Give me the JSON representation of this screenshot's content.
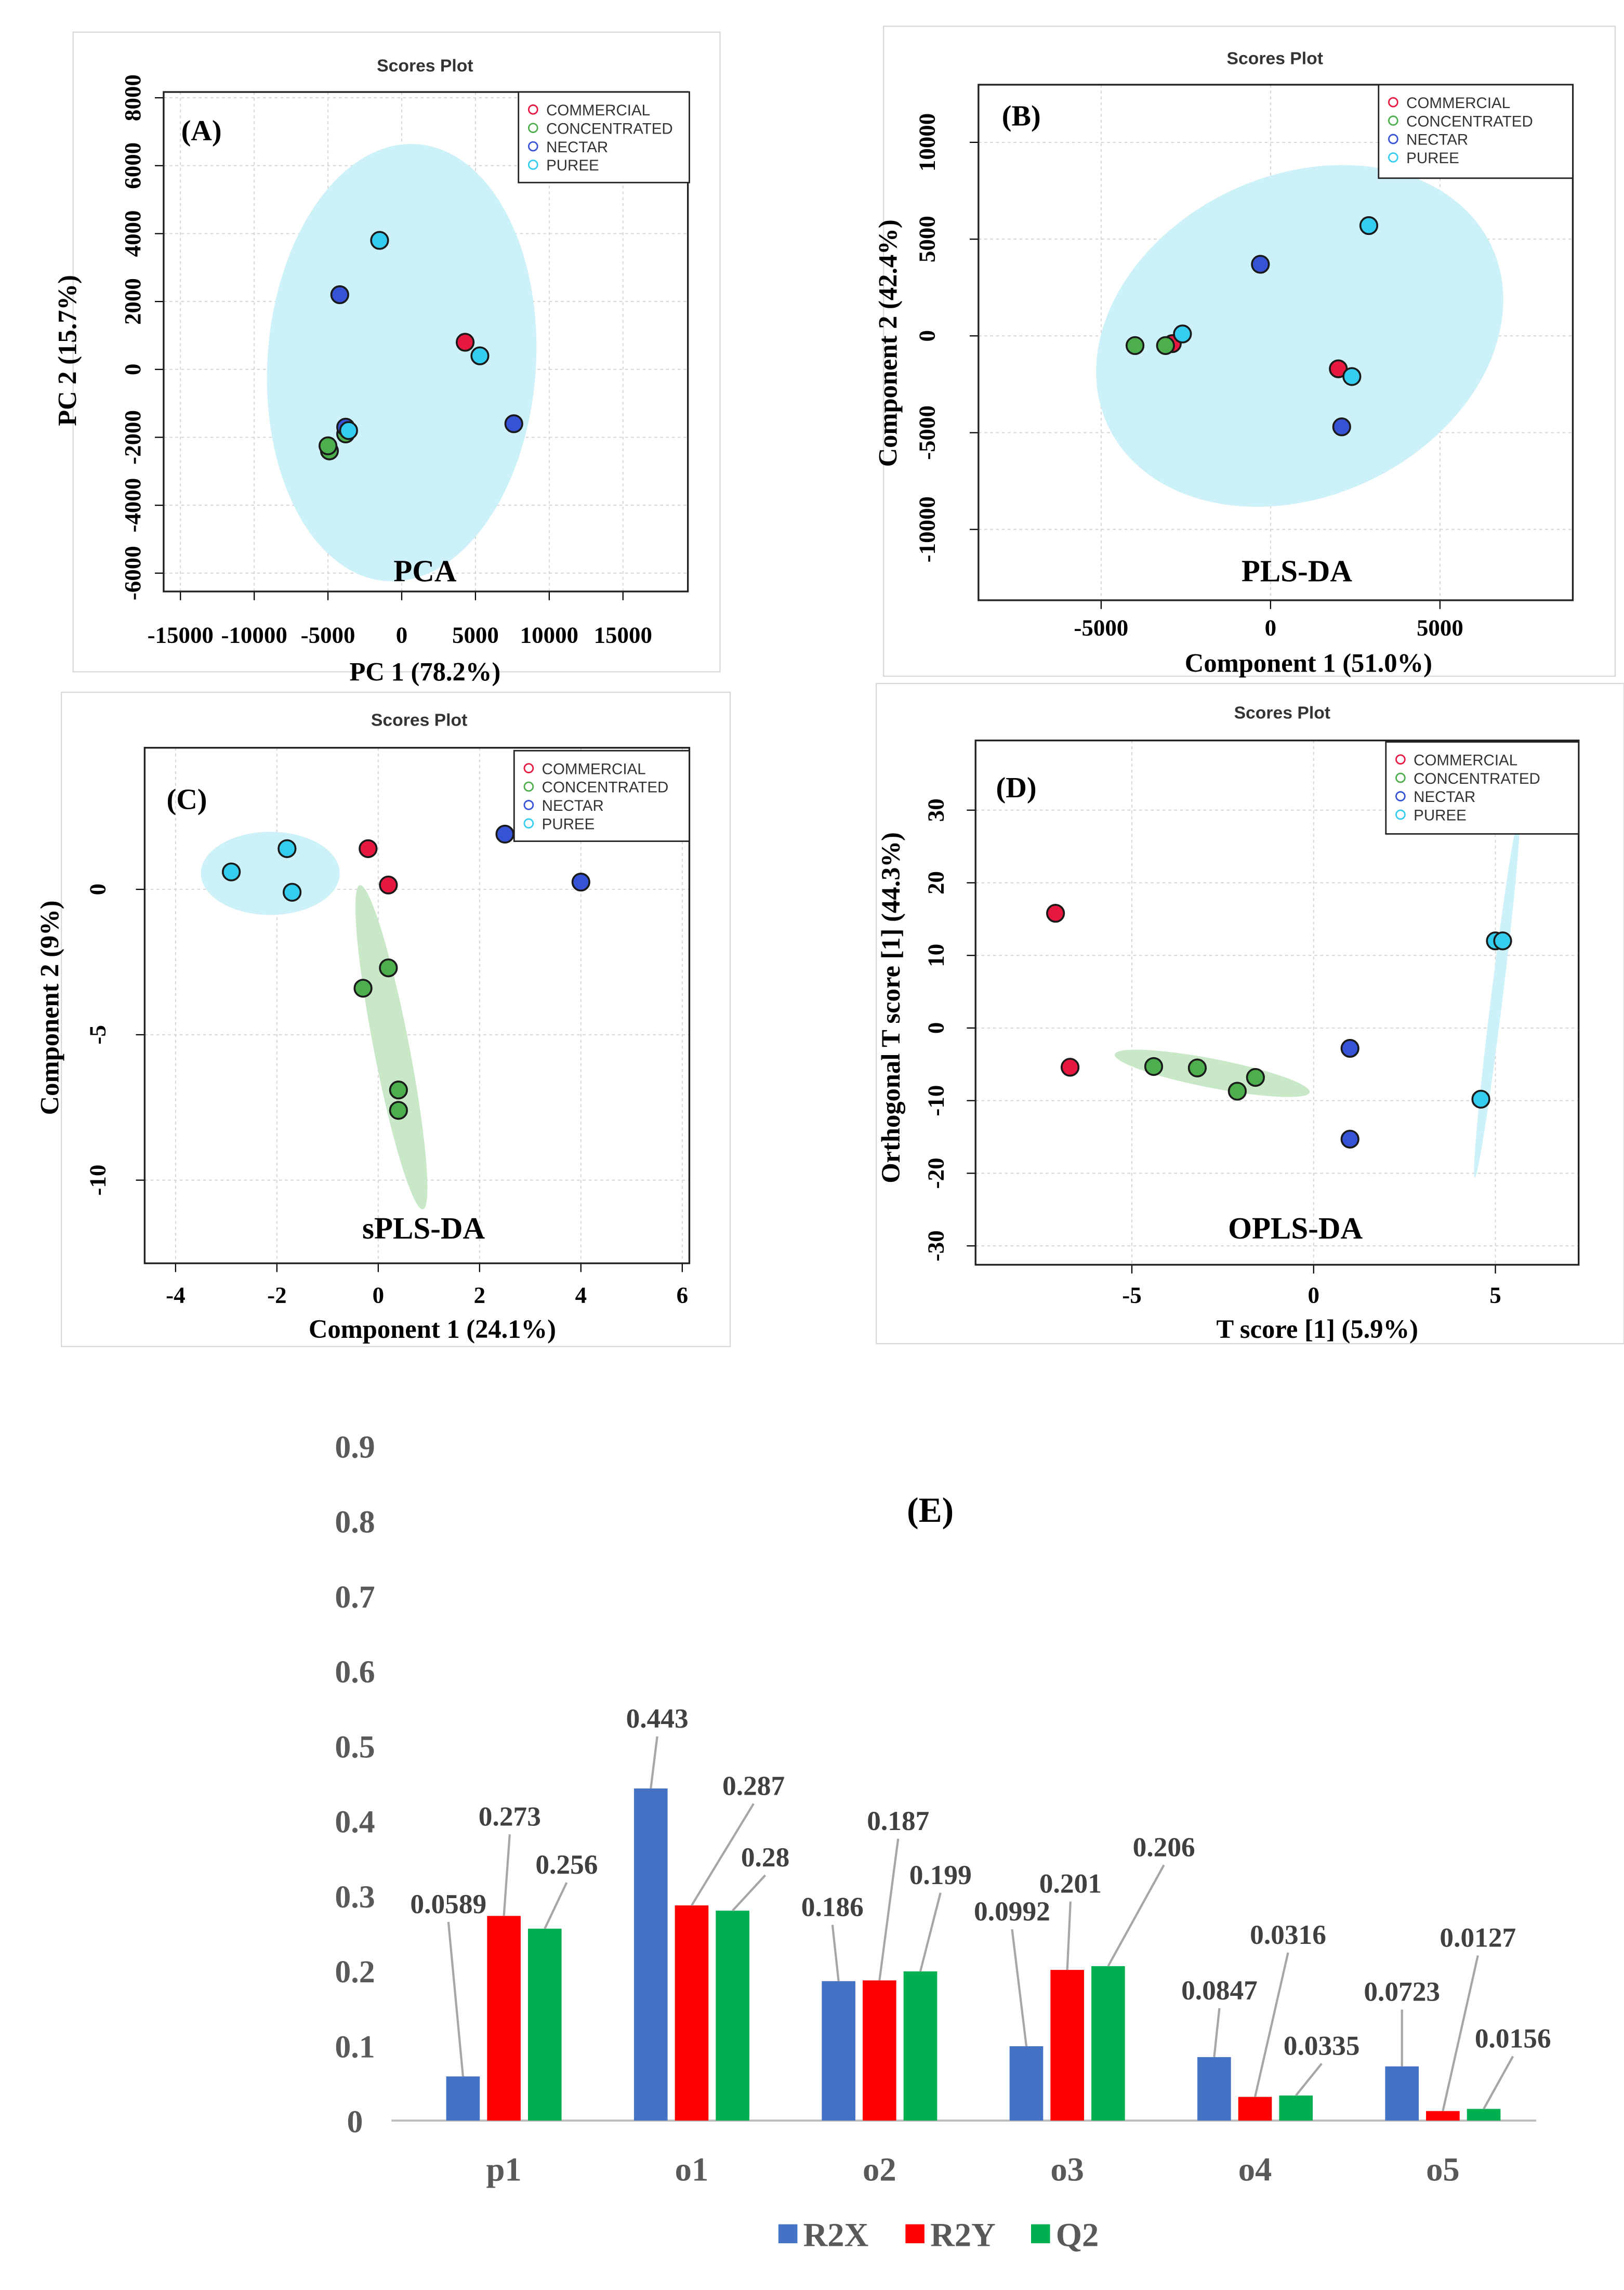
{
  "chart_data": [
    {
      "type": "scatter",
      "title": "Scores Plot",
      "panel_label": "(A)",
      "method_label": "PCA",
      "xlabel": "PC 1 (78.2%)",
      "ylabel": "PC 2 (15.7%)",
      "xlim": [
        -16140,
        19400
      ],
      "ylim": [
        -6540,
        8170
      ],
      "xticks": [
        -15000,
        -10000,
        -5000,
        0,
        5000,
        10000,
        15000
      ],
      "yticks": [
        -6000,
        -4000,
        -2000,
        0,
        2000,
        4000,
        6000,
        8000
      ],
      "grid": true,
      "legend_position": "top-right",
      "legend": [
        "COMMERCIAL",
        "CONCENTRATED",
        "NECTAR",
        "PUREE"
      ],
      "points": [
        {
          "group": "PUREE",
          "x": -1500,
          "y": 3800
        },
        {
          "group": "NECTAR",
          "x": -4200,
          "y": 2200
        },
        {
          "group": "COMMERCIAL",
          "x": 4300,
          "y": 800
        },
        {
          "group": "PUREE",
          "x": 5300,
          "y": 400
        },
        {
          "group": "NECTAR",
          "x": 7600,
          "y": -1600
        },
        {
          "group": "CONCENTRATED",
          "x": -3800,
          "y": -1900
        },
        {
          "group": "NECTAR",
          "x": -3800,
          "y": -1700
        },
        {
          "group": "PUREE",
          "x": -3600,
          "y": -1800
        },
        {
          "group": "CONCENTRATED",
          "x": -4900,
          "y": -2400
        },
        {
          "group": "CONCENTRATED",
          "x": -5000,
          "y": -2250
        }
      ],
      "ellipses": [
        {
          "group": "PUREE",
          "cx": 0,
          "cy": 200,
          "rx": 9100,
          "ry": 6450,
          "angle": 4
        }
      ]
    },
    {
      "type": "scatter",
      "title": "Scores Plot",
      "panel_label": "(B)",
      "method_label": "PLS-DA",
      "xlabel": "Component 1 (51.0%)",
      "ylabel": "Component 2 (42.4%)",
      "xlim": [
        -8620,
        8920
      ],
      "ylim": [
        -13660,
        12980
      ],
      "xticks": [
        -5000,
        0,
        5000
      ],
      "yticks": [
        -10000,
        -5000,
        0,
        5000,
        10000
      ],
      "grid": true,
      "legend_position": "top-right",
      "legend": [
        "COMMERCIAL",
        "CONCENTRATED",
        "NECTAR",
        "PUREE"
      ],
      "points": [
        {
          "group": "PUREE",
          "x": 2900,
          "y": 5700
        },
        {
          "group": "NECTAR",
          "x": -300,
          "y": 3700
        },
        {
          "group": "COMMERCIAL",
          "x": -2900,
          "y": -400
        },
        {
          "group": "PUREE",
          "x": -2600,
          "y": 100
        },
        {
          "group": "CONCENTRATED",
          "x": -3100,
          "y": -500
        },
        {
          "group": "CONCENTRATED",
          "x": -4000,
          "y": -500
        },
        {
          "group": "COMMERCIAL",
          "x": 2000,
          "y": -1700
        },
        {
          "group": "PUREE",
          "x": 2400,
          "y": -2100
        },
        {
          "group": "NECTAR",
          "x": 2100,
          "y": -4700
        }
      ],
      "ellipses": [
        {
          "group": "PUREE",
          "cx": 860,
          "cy": 0,
          "rx": 6250,
          "ry": 8300,
          "angle": -25
        }
      ]
    },
    {
      "type": "scatter",
      "title": "Scores Plot",
      "panel_label": "(C)",
      "method_label": "sPLS-DA",
      "xlabel": "Component 1 (24.1%)",
      "ylabel": "Component 2 (9%)",
      "xlim": [
        -4.61,
        6.14
      ],
      "ylim": [
        -12.86,
        4.87
      ],
      "xticks": [
        -4,
        -2,
        0,
        2,
        4,
        6
      ],
      "yticks": [
        -10,
        -5,
        0
      ],
      "grid": true,
      "legend_position": "top-right",
      "legend": [
        "COMMERCIAL",
        "CONCENTRATED",
        "NECTAR",
        "PUREE"
      ],
      "points": [
        {
          "group": "PUREE",
          "x": -2.9,
          "y": 0.6
        },
        {
          "group": "PUREE",
          "x": -1.8,
          "y": 1.4
        },
        {
          "group": "PUREE",
          "x": -1.7,
          "y": -0.1
        },
        {
          "group": "COMMERCIAL",
          "x": -0.2,
          "y": 1.4
        },
        {
          "group": "COMMERCIAL",
          "x": 0.2,
          "y": 0.15
        },
        {
          "group": "NECTAR",
          "x": 2.5,
          "y": 1.9
        },
        {
          "group": "NECTAR",
          "x": 4.0,
          "y": 0.25
        },
        {
          "group": "CONCENTRATED",
          "x": 0.2,
          "y": -2.7
        },
        {
          "group": "CONCENTRATED",
          "x": -0.3,
          "y": -3.4
        },
        {
          "group": "CONCENTRATED",
          "x": 0.4,
          "y": -6.9
        },
        {
          "group": "CONCENTRATED",
          "x": 0.4,
          "y": -7.6
        }
      ],
      "ellipses": [
        {
          "group": "PUREE",
          "cx": -2.13,
          "cy": 0.55,
          "rx": 1.37,
          "ry": 1.43,
          "angle": 0
        },
        {
          "group": "CONCENTRATED",
          "cx": 0.26,
          "cy": -5.43,
          "rx": 0.35,
          "ry": 5.68,
          "angle": -11
        }
      ]
    },
    {
      "type": "scatter",
      "title": "Scores Plot",
      "panel_label": "(D)",
      "method_label": "OPLS-DA",
      "xlabel": "T score [1] (5.9%)",
      "ylabel": "Orthogonal T score [1] (44.3%)",
      "xlim": [
        -9.3,
        7.29
      ],
      "ylim": [
        -32.6,
        39.6
      ],
      "xticks": [
        -5,
        0,
        5
      ],
      "yticks": [
        -30,
        -20,
        -10,
        0,
        10,
        20,
        30
      ],
      "grid": true,
      "legend_position": "top-right",
      "legend": [
        "COMMERCIAL",
        "CONCENTRATED",
        "NECTAR",
        "PUREE"
      ],
      "points": [
        {
          "group": "COMMERCIAL",
          "x": -7.1,
          "y": 15.8
        },
        {
          "group": "COMMERCIAL",
          "x": -6.7,
          "y": -5.4
        },
        {
          "group": "CONCENTRATED",
          "x": -4.4,
          "y": -5.3
        },
        {
          "group": "CONCENTRATED",
          "x": -3.2,
          "y": -5.5
        },
        {
          "group": "CONCENTRATED",
          "x": -2.1,
          "y": -8.7
        },
        {
          "group": "CONCENTRATED",
          "x": -1.6,
          "y": -6.8
        },
        {
          "group": "NECTAR",
          "x": 1.0,
          "y": -2.8
        },
        {
          "group": "NECTAR",
          "x": 1.0,
          "y": -15.3
        },
        {
          "group": "PUREE",
          "x": 5.0,
          "y": 12.0
        },
        {
          "group": "PUREE",
          "x": 5.2,
          "y": 12.0
        },
        {
          "group": "PUREE",
          "x": 4.6,
          "y": -9.8
        }
      ],
      "ellipses": [
        {
          "group": "CONCENTRATED",
          "cx": -2.79,
          "cy": -6.24,
          "rx": 2.73,
          "ry": 2.0,
          "angle": 11
        },
        {
          "group": "PUREE",
          "cx": 5.04,
          "cy": 4.2,
          "rx": 0.16,
          "ry": 25,
          "angle": 7
        }
      ]
    },
    {
      "type": "bar",
      "title": "(E)",
      "categories": [
        "p1",
        "o1",
        "o2",
        "o3",
        "o4",
        "o5"
      ],
      "series": [
        {
          "name": "R2X",
          "color": "#4472c4",
          "values": [
            0.0589,
            0.443,
            0.186,
            0.0992,
            0.0847,
            0.0723
          ]
        },
        {
          "name": "R2Y",
          "color": "#ff0000",
          "values": [
            0.273,
            0.287,
            0.187,
            0.201,
            0.0316,
            0.0127
          ]
        },
        {
          "name": "Q2",
          "color": "#00b050",
          "values": [
            0.256,
            0.28,
            0.199,
            0.206,
            0.0335,
            0.0156
          ]
        }
      ],
      "data_labels": [
        [
          "0.0589",
          "0.443",
          "0.186",
          "0.0992",
          "0.0847",
          "0.0723"
        ],
        [
          "0.273",
          "0.287",
          "0.187",
          "0.201",
          "0.0316",
          "0.0127"
        ],
        [
          "0.256",
          "0.28",
          "0.199",
          "0.206",
          "0.0335",
          "0.0156"
        ]
      ],
      "ylim": [
        0,
        0.9
      ],
      "yticks": [
        "0",
        "0.1",
        "0.2",
        "0.3",
        "0.4",
        "0.5",
        "0.6",
        "0.7",
        "0.8",
        "0.9"
      ],
      "xlabel": "",
      "ylabel": "",
      "grid": false,
      "legend_position": "bottom"
    }
  ],
  "group_colors": {
    "COMMERCIAL": "#e8173f",
    "CONCENTRATED": "#4cae4c",
    "NECTAR": "#3653d6",
    "PUREE": "#35cdef"
  },
  "ellipse_colors": {
    "PUREE": "#cdf1f9",
    "CONCENTRATED": "#c8e8c8"
  }
}
